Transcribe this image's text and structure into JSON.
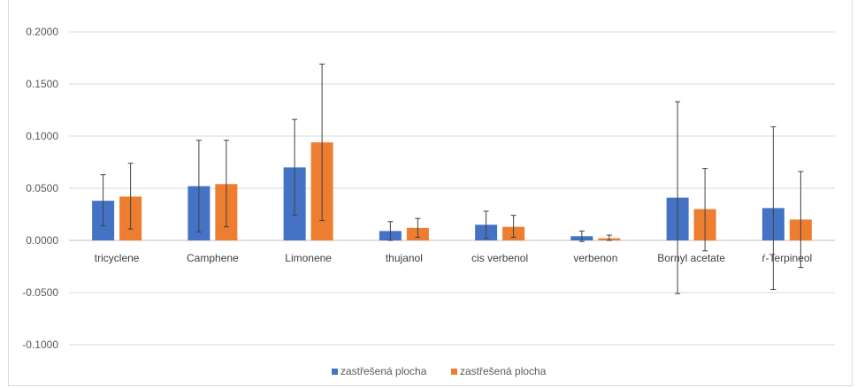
{
  "chart_data": {
    "type": "bar",
    "title": "",
    "xlabel": "",
    "ylabel": "",
    "ylim": [
      -0.1,
      0.2
    ],
    "yticks": [
      -0.1,
      -0.05,
      0.0,
      0.05,
      0.1,
      0.15,
      0.2
    ],
    "ytick_labels": [
      "-0.1000",
      "-0.0500",
      "0.0000",
      "0.0500",
      "0.1000",
      "0.1500",
      "0.2000"
    ],
    "grid": true,
    "legend_position": "bottom",
    "categories": [
      "tricyclene",
      "Camphene",
      "Limonene",
      "thujanol",
      "cis verbenol",
      "verbenon",
      "Bornyl acetate",
      "ŕ-Terpineol"
    ],
    "series": [
      {
        "name": "zastřešená plocha",
        "color": "#4472c4",
        "values": [
          0.038,
          0.052,
          0.07,
          0.009,
          0.015,
          0.004,
          0.041,
          0.031
        ],
        "error_low": [
          0.014,
          0.008,
          0.024,
          0.0,
          0.002,
          -0.001,
          -0.051,
          -0.047
        ],
        "error_high": [
          0.063,
          0.096,
          0.116,
          0.018,
          0.028,
          0.009,
          0.133,
          0.109
        ]
      },
      {
        "name": "zastřešená plocha",
        "color": "#ed7d31",
        "values": [
          0.042,
          0.054,
          0.094,
          0.012,
          0.013,
          0.002,
          0.03,
          0.02
        ],
        "error_low": [
          0.011,
          0.013,
          0.019,
          0.003,
          0.003,
          0.0,
          -0.01,
          -0.026
        ],
        "error_high": [
          0.074,
          0.096,
          0.169,
          0.021,
          0.024,
          0.005,
          0.069,
          0.066
        ]
      }
    ]
  }
}
